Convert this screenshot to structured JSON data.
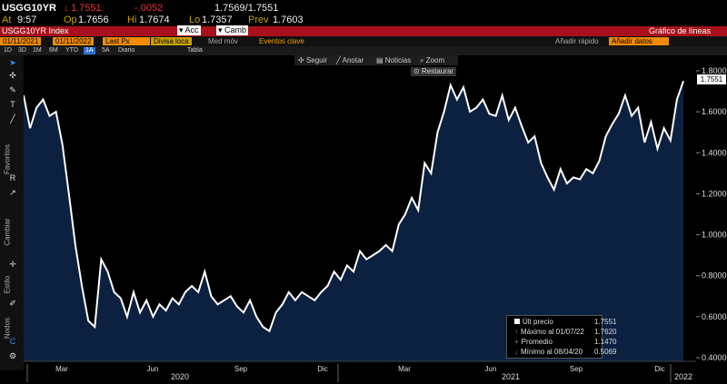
{
  "header": {
    "ticker": "USGG10YR",
    "last_arrow": "↓",
    "last": "1.7551",
    "change": "-.0052",
    "bid_ask": "1.7569/1.7551",
    "at_label": "At",
    "time": "9:57",
    "open_label": "Op",
    "open": "1.7656",
    "high_label": "Hi",
    "high": "1.7674",
    "low_label": "Lo",
    "low": "1.7357",
    "prev_label": "Prev",
    "prev": "1.7603"
  },
  "redbar": {
    "security": "USGG10YR Index",
    "acc_label": "Acc",
    "camb_label": "Camb",
    "title": "Gráfico de líneas"
  },
  "settings": {
    "start_date": "01/11/2021",
    "end_date": "01/11/2022",
    "field": "Last Px",
    "currency": "Divisa loca",
    "mov": "Med móv",
    "events": "Eventos clave",
    "quick_add": "Añadir rápido",
    "add_data": "Añadir datos"
  },
  "range_buttons": [
    "1D",
    "3D",
    "1M",
    "6M",
    "YTD",
    "1A",
    "5A",
    "Diario",
    "",
    "",
    "",
    "Tabla"
  ],
  "range_selected": "1A",
  "tools": {
    "follow": "Seguir",
    "annotate": "Anotar",
    "news": "Noticias",
    "zoom": "Zoom",
    "restore": "Restaurar"
  },
  "side_labels": {
    "favorites": "Favoritos",
    "change": "Cambiar",
    "style": "Estilo",
    "nodes": "Nodos"
  },
  "legend": {
    "rows": [
      {
        "label": "Últ precio",
        "value": "1.7551"
      },
      {
        "label": "Máximo al 01/07/22",
        "value": "1.7620"
      },
      {
        "label": "Promedio",
        "value": "1.1470"
      },
      {
        "label": "Mínimo al 08/04/20",
        "value": "0.5069"
      }
    ]
  },
  "colors": {
    "accent_red": "#a8101c",
    "accent_orange": "#f08a00",
    "line": "#ffffff",
    "fill": "#0c2140"
  },
  "chart_data": {
    "type": "area",
    "ylim": [
      0.4,
      1.8
    ],
    "yticks": [
      "1.8000",
      "1.6000",
      "1.4000",
      "1.2000",
      "1.0000",
      "0.8000",
      "0.6000",
      "0.4000"
    ],
    "ytick_values": [
      1.8,
      1.6,
      1.4,
      1.2,
      1.0,
      0.8,
      0.6,
      0.4
    ],
    "month_ticks": [
      "Mar",
      "Jun",
      "Sep",
      "Dic",
      "Mar",
      "Jun",
      "Sep",
      "Dic"
    ],
    "year_labels": [
      "2020",
      "2021",
      "2022"
    ],
    "last_value_label": "1.7551",
    "series": [
      {
        "values": [
          1.68,
          1.52,
          1.62,
          1.66,
          1.58,
          1.6,
          1.44,
          1.2,
          0.95,
          0.75,
          0.58,
          0.55,
          0.88,
          0.82,
          0.72,
          0.69,
          0.6,
          0.72,
          0.62,
          0.68,
          0.6,
          0.66,
          0.63,
          0.69,
          0.66,
          0.72,
          0.75,
          0.72,
          0.82,
          0.7,
          0.66,
          0.68,
          0.7,
          0.65,
          0.62,
          0.68,
          0.6,
          0.55,
          0.53,
          0.62,
          0.66,
          0.72,
          0.68,
          0.72,
          0.7,
          0.68,
          0.72,
          0.75,
          0.82,
          0.78,
          0.85,
          0.82,
          0.92,
          0.88,
          0.9,
          0.92,
          0.95,
          0.92,
          1.05,
          1.1,
          1.18,
          1.12,
          1.35,
          1.3,
          1.5,
          1.6,
          1.73,
          1.66,
          1.72,
          1.6,
          1.62,
          1.66,
          1.59,
          1.58,
          1.68,
          1.56,
          1.62,
          1.53,
          1.45,
          1.48,
          1.35,
          1.28,
          1.22,
          1.32,
          1.25,
          1.28,
          1.27,
          1.32,
          1.3,
          1.36,
          1.48,
          1.54,
          1.59,
          1.68,
          1.58,
          1.62,
          1.45,
          1.55,
          1.42,
          1.52,
          1.46,
          1.66,
          1.75
        ]
      }
    ]
  }
}
